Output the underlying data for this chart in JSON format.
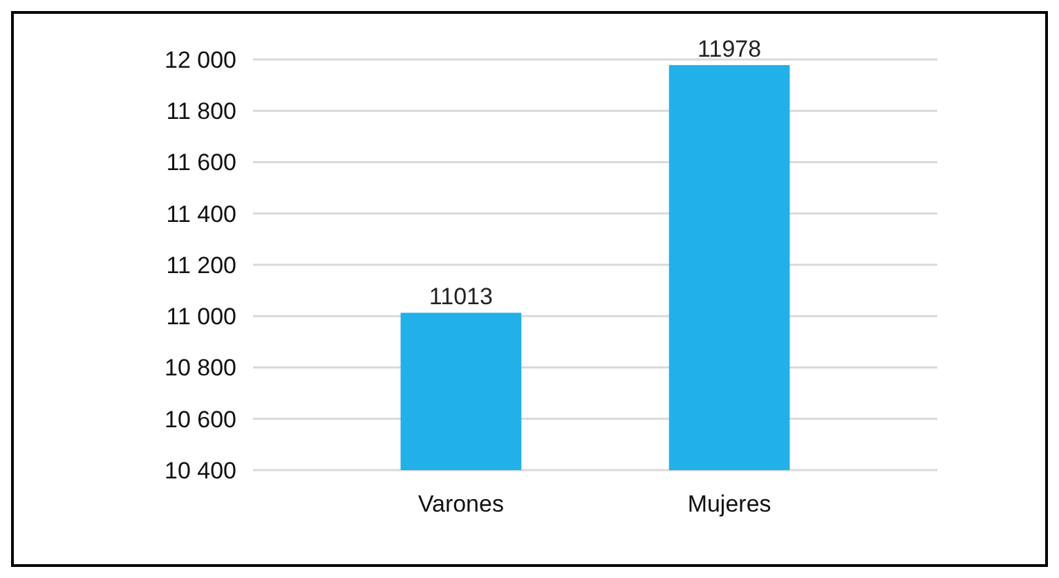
{
  "chart_data": {
    "type": "bar",
    "categories": [
      "Varones",
      "Mujeres"
    ],
    "values": [
      11013,
      11978
    ],
    "color": "#22b0e8",
    "ylim": [
      10400,
      12000
    ],
    "yticks": [
      {
        "value": 10400,
        "label": "10 400"
      },
      {
        "value": 10600,
        "label": "10 600"
      },
      {
        "value": 10800,
        "label": "10 800"
      },
      {
        "value": 11000,
        "label": "11 000"
      },
      {
        "value": 11200,
        "label": "11 200"
      },
      {
        "value": 11400,
        "label": "11 400"
      },
      {
        "value": 11600,
        "label": "11 600"
      },
      {
        "value": 11800,
        "label": "11 800"
      },
      {
        "value": 12000,
        "label": "12 000"
      }
    ],
    "grid": "y",
    "data_labels": true
  }
}
